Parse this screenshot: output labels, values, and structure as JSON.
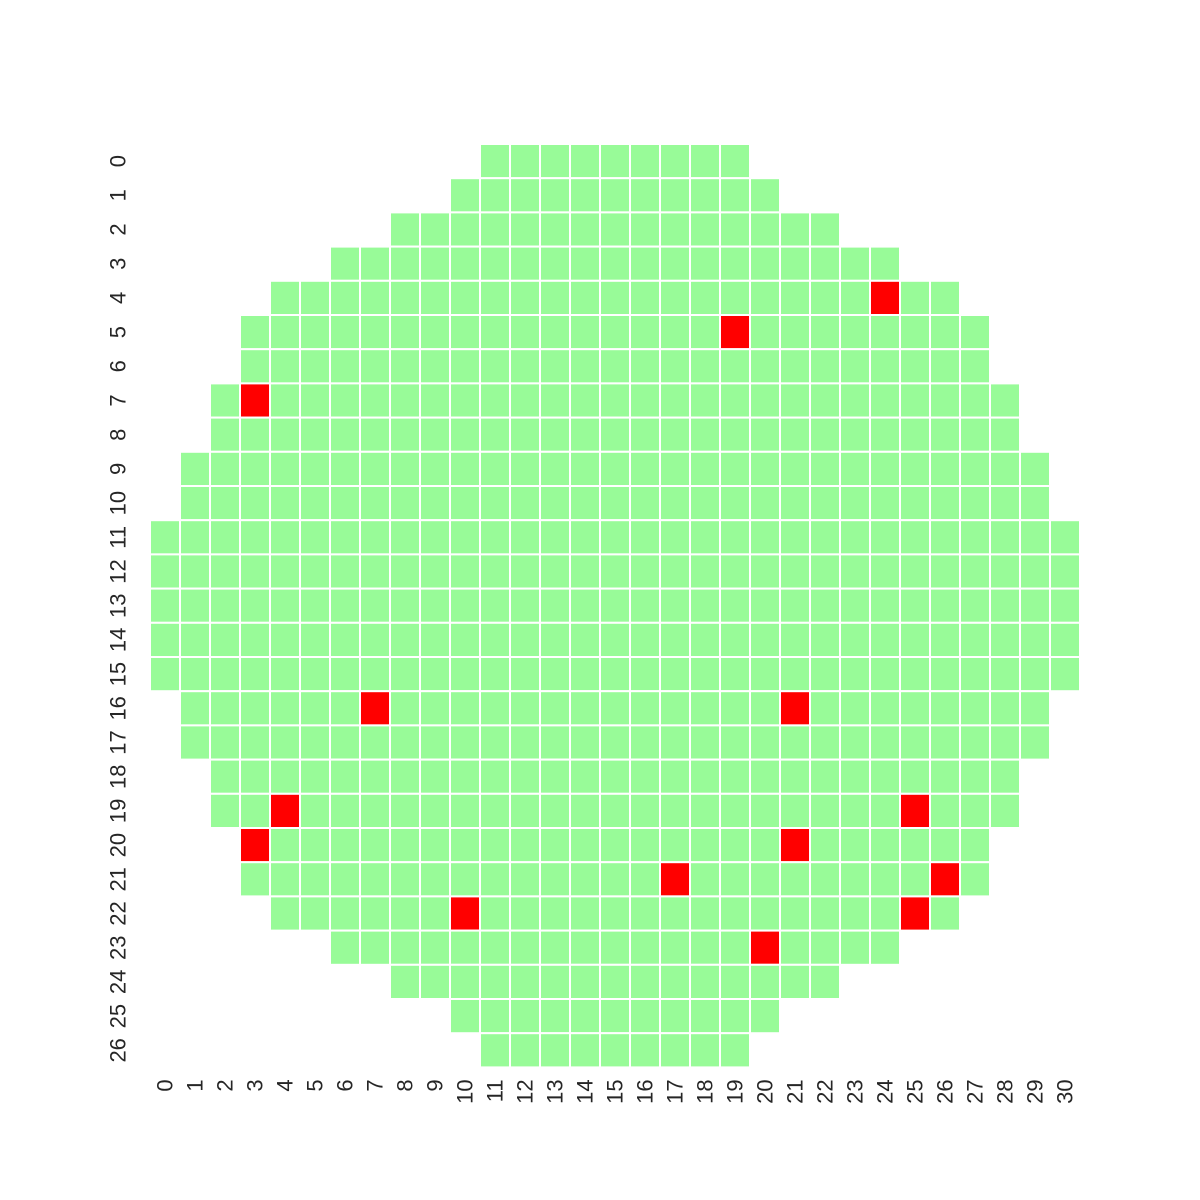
{
  "chart_data": {
    "type": "heatmap",
    "title": "",
    "xlabel": "",
    "ylabel": "",
    "x_ticks": [
      "0",
      "1",
      "2",
      "3",
      "4",
      "5",
      "6",
      "7",
      "8",
      "9",
      "10",
      "11",
      "12",
      "13",
      "14",
      "15",
      "16",
      "17",
      "18",
      "19",
      "20",
      "21",
      "22",
      "23",
      "24",
      "25",
      "26",
      "27",
      "28",
      "29",
      "30"
    ],
    "y_ticks": [
      "0",
      "1",
      "2",
      "3",
      "4",
      "5",
      "6",
      "7",
      "8",
      "9",
      "10",
      "11",
      "12",
      "13",
      "14",
      "15",
      "16",
      "17",
      "18",
      "19",
      "20",
      "21",
      "22",
      "23",
      "24",
      "25",
      "26"
    ],
    "grid": false,
    "legend": "none",
    "colors": {
      "pass": "#98fb98",
      "fail": "#ff0000",
      "gap": "#ffffff"
    },
    "row_extents": [
      [
        11,
        19
      ],
      [
        10,
        20
      ],
      [
        8,
        22
      ],
      [
        6,
        24
      ],
      [
        4,
        26
      ],
      [
        3,
        27
      ],
      [
        3,
        27
      ],
      [
        2,
        28
      ],
      [
        2,
        28
      ],
      [
        1,
        29
      ],
      [
        1,
        29
      ],
      [
        0,
        30
      ],
      [
        0,
        30
      ],
      [
        0,
        30
      ],
      [
        0,
        30
      ],
      [
        0,
        30
      ],
      [
        1,
        29
      ],
      [
        1,
        29
      ],
      [
        2,
        28
      ],
      [
        2,
        28
      ],
      [
        3,
        27
      ],
      [
        3,
        27
      ],
      [
        4,
        26
      ],
      [
        6,
        24
      ],
      [
        8,
        22
      ],
      [
        10,
        20
      ],
      [
        11,
        19
      ]
    ],
    "fail_cells": [
      [
        4,
        24
      ],
      [
        5,
        19
      ],
      [
        7,
        3
      ],
      [
        16,
        7
      ],
      [
        16,
        21
      ],
      [
        19,
        4
      ],
      [
        19,
        25
      ],
      [
        20,
        3
      ],
      [
        20,
        21
      ],
      [
        21,
        17
      ],
      [
        21,
        26
      ],
      [
        22,
        10
      ],
      [
        22,
        25
      ],
      [
        23,
        20
      ]
    ]
  }
}
